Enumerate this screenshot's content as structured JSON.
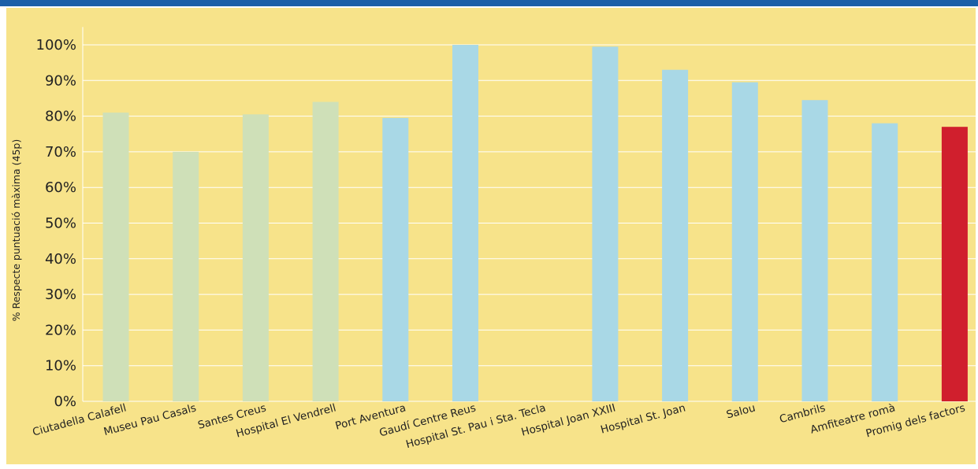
{
  "colors": {
    "page_background": "#ffffff",
    "header_bar": "#1c5fa8",
    "plot_background": "#f7e38a",
    "gridline": "#ffffff",
    "green_bar": "#cfe0b8",
    "blue_bar": "#a9d8e6",
    "red_bar": "#d01f2d",
    "text": "#222222"
  },
  "chart_data": {
    "type": "bar",
    "title": "",
    "xlabel": "",
    "ylabel": "% Respecte puntuació màxima (45p)",
    "ylim": [
      0,
      105
    ],
    "y_ticks": [
      0,
      10,
      20,
      30,
      40,
      50,
      60,
      70,
      80,
      90,
      100
    ],
    "y_tick_labels": [
      "0%",
      "10%",
      "20%",
      "30%",
      "40%",
      "50%",
      "60%",
      "70%",
      "80%",
      "90%",
      "100%"
    ],
    "grid": "horizontal",
    "categories": [
      "Ciutadella Calafell",
      "Museu Pau Casals",
      "Santes Creus",
      "Hospital El Vendrell",
      "Port Aventura",
      "Gaudí Centre Reus",
      "Hospital St. Pau i Sta. Tecla",
      "Hospital Joan XXIII",
      "Hospital St. Joan",
      "Salou",
      "Cambrils",
      "Amfiteatre romà",
      "Promig dels factors"
    ],
    "values": [
      81,
      70,
      80.5,
      84,
      79.5,
      100,
      0,
      99.5,
      93,
      89.5,
      84.5,
      78,
      77
    ],
    "bar_colors": [
      "green",
      "green",
      "green",
      "green",
      "blue",
      "blue",
      "blue",
      "blue",
      "blue",
      "blue",
      "blue",
      "blue",
      "red"
    ]
  }
}
